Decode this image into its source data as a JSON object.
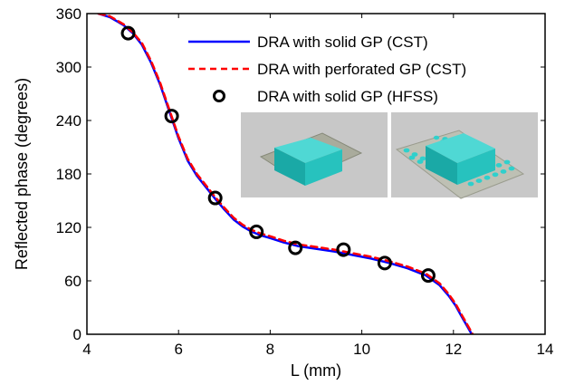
{
  "chart_data": {
    "type": "line",
    "title": "",
    "xlabel": "L (mm)",
    "ylabel": "Reflected phase (degrees)",
    "xlim": [
      4,
      14
    ],
    "ylim": [
      0,
      360
    ],
    "xticks": [
      4,
      6,
      8,
      10,
      12,
      14
    ],
    "yticks": [
      0,
      60,
      120,
      180,
      240,
      300,
      360
    ],
    "grid": false,
    "legend_position": "top-right",
    "series": [
      {
        "name": "DRA with solid GP (CST)",
        "style": "solid-line",
        "color": "#0000ff",
        "x": [
          4.25,
          4.5,
          4.8,
          5.0,
          5.2,
          5.4,
          5.6,
          5.8,
          6.0,
          6.2,
          6.4,
          6.6,
          6.8,
          7.0,
          7.2,
          7.4,
          7.6,
          7.8,
          8.0,
          8.3,
          8.6,
          9.0,
          9.4,
          9.8,
          10.2,
          10.6,
          11.0,
          11.4,
          11.7,
          11.9,
          12.05,
          12.2,
          12.3,
          12.4
        ],
        "y": [
          360,
          356,
          347,
          338,
          325,
          305,
          280,
          250,
          220,
          195,
          178,
          165,
          152,
          140,
          129,
          121,
          115,
          111,
          108,
          103,
          99,
          96,
          93,
          89,
          85,
          80,
          74,
          66,
          55,
          43,
          32,
          18,
          9,
          0
        ]
      },
      {
        "name": "DRA with perforated GP (CST)",
        "style": "dashed-line",
        "color": "#ff0000",
        "x": [
          4.25,
          4.5,
          4.8,
          5.0,
          5.2,
          5.4,
          5.6,
          5.8,
          6.0,
          6.2,
          6.4,
          6.6,
          6.8,
          7.0,
          7.2,
          7.4,
          7.6,
          7.8,
          8.0,
          8.3,
          8.6,
          9.0,
          9.4,
          9.8,
          10.2,
          10.6,
          11.0,
          11.4,
          11.7,
          11.9,
          12.05,
          12.2,
          12.3,
          12.42
        ],
        "y": [
          360,
          357,
          348,
          339,
          327,
          307,
          282,
          252,
          222,
          197,
          180,
          167,
          154,
          142,
          131,
          123,
          117,
          113,
          110,
          105,
          101,
          98,
          95,
          91,
          87,
          82,
          76,
          68,
          57,
          45,
          34,
          20,
          11,
          0
        ]
      },
      {
        "name": "DRA with solid GP (HFSS)",
        "style": "markers",
        "color": "#000000",
        "x": [
          4.9,
          5.85,
          6.8,
          7.7,
          8.55,
          9.6,
          10.5,
          11.45
        ],
        "y": [
          338,
          245,
          153,
          115,
          97,
          95,
          80,
          66
        ]
      }
    ]
  }
}
